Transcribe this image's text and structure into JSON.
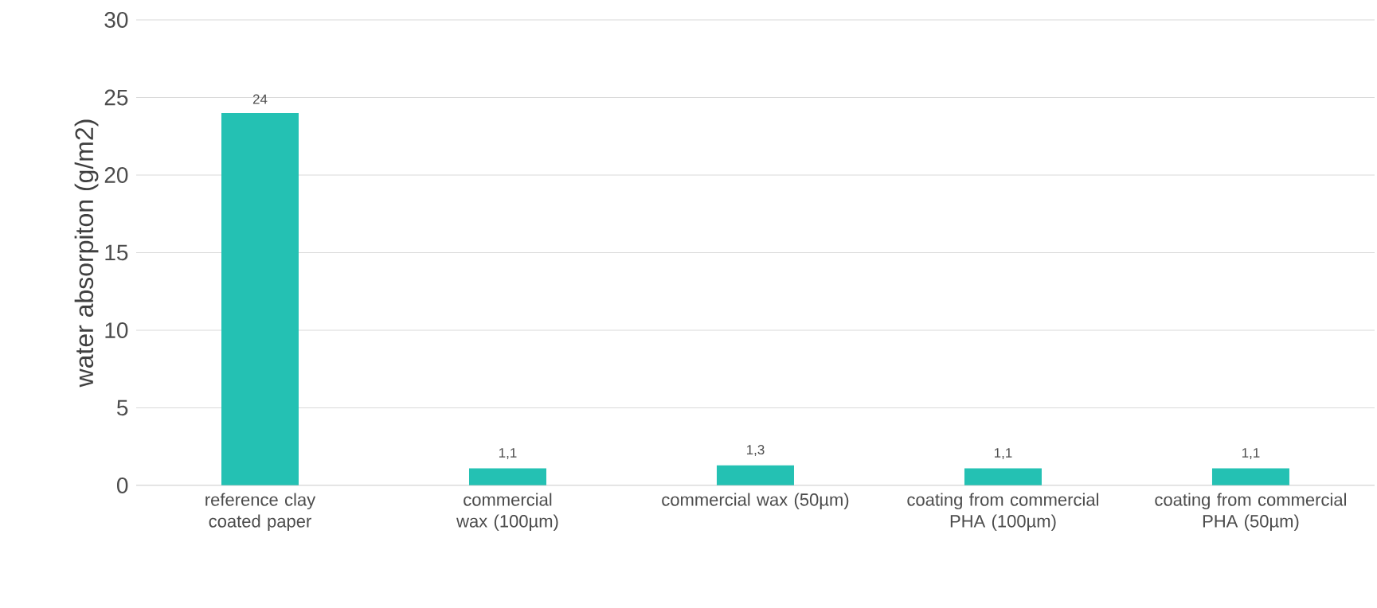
{
  "chart_data": {
    "type": "bar",
    "ylabel": "water absorpiton (g/m2)",
    "categories": [
      "reference clay coated paper",
      "commercial wax (100µm)",
      "commercial wax (50µm)",
      "coating from commercial PHA (100µm)",
      "coating from commercial PHA (50µm)"
    ],
    "values": [
      24,
      1.1,
      1.3,
      1.1,
      1.1
    ],
    "value_labels": [
      "24",
      "1,1",
      "1,3",
      "1,1",
      "1,1"
    ],
    "color": "#24c1b3",
    "ylim": [
      0,
      30
    ],
    "yticks": [
      0,
      5,
      10,
      15,
      20,
      25,
      30
    ],
    "grid": "y"
  }
}
